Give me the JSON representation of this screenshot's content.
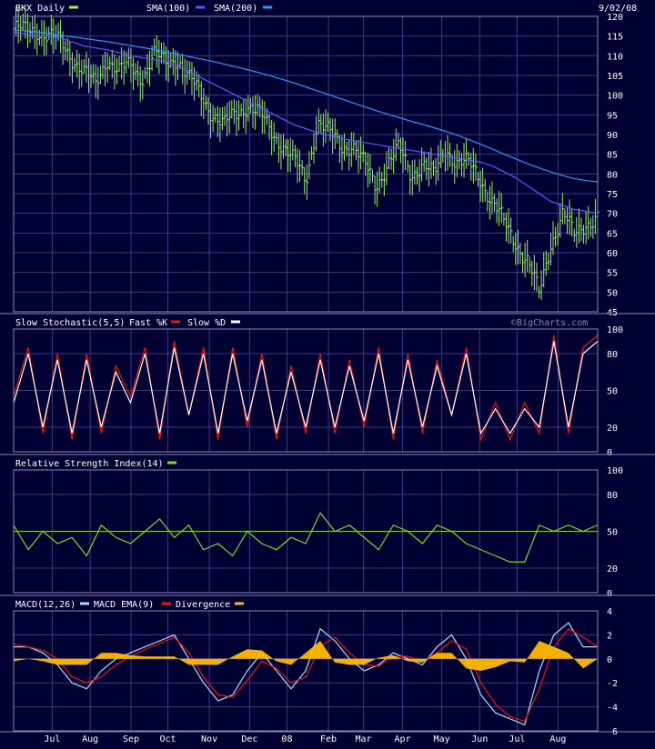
{
  "colors": {
    "background": "#000033",
    "frame": "#8888bb",
    "grid": "#3a3a88",
    "price": "#99ee66",
    "sma100": "#6655ff",
    "sma200": "#2299ff",
    "stoch_k": "#ee1111",
    "stoch_d": "#ffffff",
    "rsi": "#77dd22",
    "rsi_ref": "#77dd22",
    "macd": "#aaddff",
    "macd_ema": "#ee1111",
    "divergence": "#ffbb00"
  },
  "header": {
    "date": "9/02/08"
  },
  "watermark": "©BigCharts.com",
  "x_axis": {
    "months": [
      {
        "label": "Jul",
        "pos": 0.066
      },
      {
        "label": "Aug",
        "pos": 0.131
      },
      {
        "label": "Sep",
        "pos": 0.201
      },
      {
        "label": "Oct",
        "pos": 0.264
      },
      {
        "label": "Nov",
        "pos": 0.335
      },
      {
        "label": "Dec",
        "pos": 0.404
      },
      {
        "label": "08",
        "pos": 0.468
      },
      {
        "label": "Feb",
        "pos": 0.539
      },
      {
        "label": "Mar",
        "pos": 0.599
      },
      {
        "label": "Apr",
        "pos": 0.666
      },
      {
        "label": "May",
        "pos": 0.733
      },
      {
        "label": "Jun",
        "pos": 0.798
      },
      {
        "label": "Jul",
        "pos": 0.862
      },
      {
        "label": "Aug",
        "pos": 0.932
      }
    ]
  },
  "chart_data": [
    {
      "type": "line",
      "title": "BKX Daily",
      "legend": [
        {
          "name": "BKX Daily",
          "color": "#99ee66"
        },
        {
          "name": "SMA(100)",
          "color": "#6655ff"
        },
        {
          "name": "SMA(200)",
          "color": "#2299ff"
        }
      ],
      "ylim": [
        45,
        120
      ],
      "yticks": [
        45,
        50,
        55,
        60,
        65,
        70,
        75,
        80,
        85,
        90,
        95,
        100,
        105,
        110,
        115,
        120
      ],
      "x": [
        0,
        0.02,
        0.04,
        0.06,
        0.08,
        0.1,
        0.12,
        0.14,
        0.16,
        0.18,
        0.2,
        0.22,
        0.24,
        0.26,
        0.28,
        0.3,
        0.32,
        0.34,
        0.36,
        0.38,
        0.4,
        0.42,
        0.44,
        0.46,
        0.48,
        0.5,
        0.52,
        0.54,
        0.56,
        0.58,
        0.6,
        0.62,
        0.64,
        0.66,
        0.68,
        0.7,
        0.72,
        0.74,
        0.76,
        0.78,
        0.8,
        0.82,
        0.84,
        0.86,
        0.88,
        0.9,
        0.92,
        0.94,
        0.96,
        0.98,
        1.0
      ],
      "series": [
        {
          "name": "BKX Daily",
          "values": [
            117,
            116,
            117,
            115,
            113,
            110,
            106,
            102,
            110,
            106,
            107,
            105,
            110,
            108,
            110,
            104,
            100,
            96,
            92,
            95,
            98,
            95,
            91,
            88,
            83,
            78,
            94,
            90,
            87,
            88,
            82,
            77,
            83,
            86,
            80,
            83,
            79,
            87,
            83,
            82,
            79,
            73,
            67,
            63,
            58,
            49,
            63,
            70,
            64,
            68,
            69
          ]
        },
        {
          "name": "SMA(100)",
          "values": [
            116,
            115.5,
            115,
            115,
            114.5,
            113.5,
            112.5,
            112,
            111.5,
            110.8,
            110,
            109.5,
            109,
            108.5,
            107.5,
            106,
            104.5,
            103,
            101.5,
            100,
            98.5,
            97,
            95.5,
            94,
            92.5,
            91.5,
            90.5,
            89.8,
            89,
            88.5,
            88,
            87.5,
            87,
            86.5,
            86,
            85.5,
            85,
            84.5,
            84,
            83.5,
            83,
            82,
            80.5,
            79,
            77,
            75,
            73,
            72,
            71,
            70.5,
            70
          ]
        },
        {
          "name": "SMA(200)",
          "values": [
            116.5,
            116.3,
            116,
            115.6,
            115.2,
            114.8,
            114.4,
            114,
            113.6,
            113.1,
            112.6,
            112.1,
            111.6,
            111,
            110.4,
            109.8,
            109.2,
            108.6,
            107.9,
            107.2,
            106.5,
            105.7,
            104.9,
            104,
            103.1,
            102.1,
            101.1,
            100.1,
            99.1,
            98.1,
            97.1,
            96.1,
            95.2,
            94.3,
            93.4,
            92.6,
            91.7,
            90.8,
            89.8,
            88.7,
            87.5,
            86.3,
            85,
            83.8,
            82.6,
            81.5,
            80.5,
            79.6,
            78.8,
            78.3,
            78
          ]
        }
      ]
    },
    {
      "type": "line",
      "title": "Slow Stochastic(5,5)",
      "legend": [
        {
          "name": "Slow Stochastic(5,5)",
          "color": null
        },
        {
          "name": "Fast %K",
          "color": "#ee1111"
        },
        {
          "name": "Slow %D",
          "color": "#ffffff"
        }
      ],
      "ylim": [
        0,
        100
      ],
      "yticks": [
        0,
        20,
        50,
        80,
        100
      ],
      "x": [
        0,
        0.025,
        0.05,
        0.075,
        0.1,
        0.125,
        0.15,
        0.175,
        0.2,
        0.225,
        0.25,
        0.275,
        0.3,
        0.325,
        0.35,
        0.375,
        0.4,
        0.425,
        0.45,
        0.475,
        0.5,
        0.525,
        0.55,
        0.575,
        0.6,
        0.625,
        0.65,
        0.675,
        0.7,
        0.725,
        0.75,
        0.775,
        0.8,
        0.825,
        0.85,
        0.875,
        0.9,
        0.925,
        0.95,
        0.975,
        1.0
      ],
      "series": [
        {
          "name": "Fast %K",
          "values": [
            45,
            85,
            15,
            80,
            10,
            80,
            15,
            70,
            45,
            85,
            10,
            90,
            30,
            85,
            10,
            85,
            20,
            80,
            10,
            70,
            15,
            80,
            15,
            75,
            20,
            85,
            10,
            80,
            15,
            75,
            30,
            85,
            10,
            40,
            10,
            40,
            15,
            95,
            15,
            85,
            95
          ]
        },
        {
          "name": "Slow %D",
          "values": [
            40,
            80,
            20,
            75,
            15,
            75,
            20,
            65,
            40,
            80,
            15,
            85,
            30,
            80,
            15,
            80,
            25,
            75,
            15,
            65,
            20,
            75,
            20,
            70,
            25,
            80,
            15,
            75,
            20,
            70,
            30,
            80,
            15,
            35,
            15,
            35,
            20,
            90,
            20,
            80,
            90
          ]
        }
      ]
    },
    {
      "type": "line",
      "title": "Relative Strength Index(14)",
      "legend": [
        {
          "name": "Relative Strength Index(14)",
          "color": "#77dd22"
        }
      ],
      "ylim": [
        0,
        100
      ],
      "yticks": [
        0,
        20,
        50,
        80,
        100
      ],
      "reference_line": 50,
      "x": [
        0,
        0.025,
        0.05,
        0.075,
        0.1,
        0.125,
        0.15,
        0.175,
        0.2,
        0.225,
        0.25,
        0.275,
        0.3,
        0.325,
        0.35,
        0.375,
        0.4,
        0.425,
        0.45,
        0.475,
        0.5,
        0.525,
        0.55,
        0.575,
        0.6,
        0.625,
        0.65,
        0.675,
        0.7,
        0.725,
        0.75,
        0.775,
        0.8,
        0.825,
        0.85,
        0.875,
        0.9,
        0.925,
        0.95,
        0.975,
        1.0
      ],
      "series": [
        {
          "name": "RSI(14)",
          "values": [
            55,
            35,
            50,
            40,
            45,
            30,
            55,
            45,
            40,
            50,
            60,
            45,
            55,
            35,
            40,
            30,
            50,
            40,
            35,
            45,
            40,
            65,
            50,
            55,
            45,
            35,
            55,
            50,
            40,
            55,
            50,
            40,
            35,
            30,
            25,
            25,
            55,
            50,
            55,
            50,
            55
          ]
        }
      ]
    },
    {
      "type": "line",
      "title": "MACD(12,26)",
      "legend": [
        {
          "name": "MACD(12,26)",
          "color": "#aaddff"
        },
        {
          "name": "MACD EMA(9)",
          "color": "#ee1111"
        },
        {
          "name": "Divergence",
          "color": "#ffbb00"
        }
      ],
      "ylim": [
        -6,
        4
      ],
      "yticks": [
        -6,
        -4,
        -2,
        0,
        2,
        4
      ],
      "x": [
        0,
        0.025,
        0.05,
        0.075,
        0.1,
        0.125,
        0.15,
        0.175,
        0.2,
        0.225,
        0.25,
        0.275,
        0.3,
        0.325,
        0.35,
        0.375,
        0.4,
        0.425,
        0.45,
        0.475,
        0.5,
        0.525,
        0.55,
        0.575,
        0.6,
        0.625,
        0.65,
        0.675,
        0.7,
        0.725,
        0.75,
        0.775,
        0.8,
        0.825,
        0.85,
        0.875,
        0.9,
        0.925,
        0.95,
        0.975,
        1.0
      ],
      "series": [
        {
          "name": "MACD(12,26)",
          "values": [
            1,
            1,
            0.5,
            -0.5,
            -2,
            -2.5,
            -1,
            0,
            0.5,
            1,
            1.5,
            2,
            0,
            -2,
            -3.5,
            -3,
            -1,
            0.5,
            -1,
            -2.5,
            -1,
            2.5,
            1.5,
            0,
            -1,
            -0.5,
            0.5,
            0,
            -0.5,
            1,
            2,
            0,
            -3,
            -4.5,
            -5,
            -5.5,
            -1,
            2,
            3,
            1,
            1
          ]
        },
        {
          "name": "MACD EMA(9)",
          "values": [
            1.2,
            1,
            0.7,
            0,
            -1.5,
            -2,
            -1.5,
            -0.5,
            0.2,
            0.8,
            1.3,
            1.8,
            0.5,
            -1.5,
            -3,
            -3.2,
            -1.8,
            -0.2,
            -0.8,
            -2,
            -1.5,
            1,
            1.8,
            0.5,
            -0.5,
            -0.6,
            0.2,
            0.2,
            -0.2,
            0.5,
            1.5,
            0.8,
            -2,
            -3.8,
            -4.8,
            -5.2,
            -2.5,
            1,
            2.5,
            1.8,
            1
          ]
        },
        {
          "name": "Divergence",
          "values": [
            -0.2,
            0,
            -0.2,
            -0.5,
            -0.5,
            -0.5,
            0.5,
            0.5,
            0.3,
            0.2,
            0.2,
            0.2,
            -0.5,
            -0.5,
            -0.5,
            0.2,
            0.8,
            0.7,
            -0.2,
            -0.5,
            0.5,
            1.5,
            -0.3,
            -0.5,
            -0.5,
            0.1,
            0.3,
            -0.2,
            -0.3,
            0.5,
            0.5,
            -0.8,
            -1,
            -0.7,
            -0.2,
            -0.3,
            1.5,
            1,
            0.5,
            -0.8,
            0
          ]
        }
      ]
    }
  ]
}
